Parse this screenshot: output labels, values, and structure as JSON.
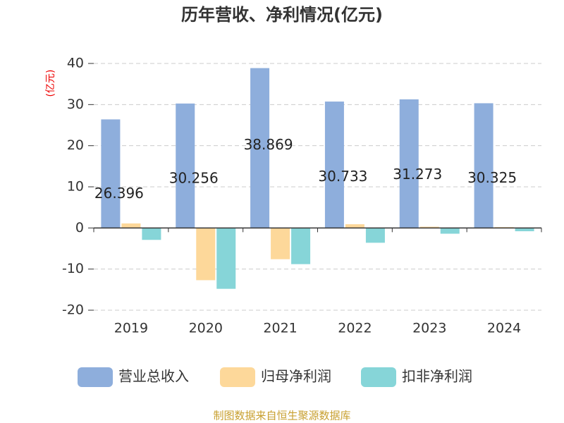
{
  "chart_data": {
    "type": "bar",
    "title": "历年营收、净利情况(亿元)",
    "y_label": "(亿元)",
    "categories": [
      "2019",
      "2020",
      "2021",
      "2022",
      "2023",
      "2024"
    ],
    "series": [
      {
        "name": "营业总收入",
        "color": "#8eaedc",
        "values": [
          26.396,
          30.256,
          38.869,
          30.733,
          31.273,
          30.325
        ],
        "show_labels": true
      },
      {
        "name": "归母净利润",
        "color": "#fdd89a",
        "values": [
          1.1,
          -12.7,
          -7.6,
          0.9,
          0.3,
          0.2
        ]
      },
      {
        "name": "扣非净利润",
        "color": "#86d5d8",
        "values": [
          -2.9,
          -14.8,
          -8.8,
          -3.6,
          -1.4,
          -0.8
        ]
      }
    ],
    "ylim": [
      -20,
      40
    ],
    "yticks": [
      -20,
      -10,
      0,
      10,
      20,
      30,
      40
    ],
    "grid": true,
    "source": "制图数据来自恒生聚源数据库"
  }
}
